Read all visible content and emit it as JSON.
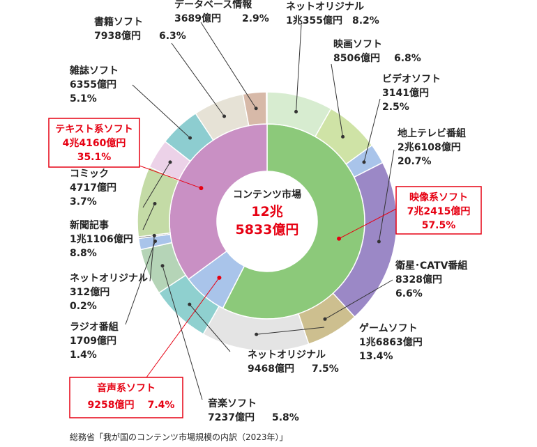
{
  "chart_data": {
    "type": "donut",
    "center_lines": [
      "コンテンツ市場",
      "12兆",
      "5833億円"
    ],
    "inner": {
      "names": [
        "映像系ソフト",
        "音声系ソフト",
        "テキスト系ソフト"
      ],
      "amounts": [
        "7兆2415億円",
        "9258億円",
        "4兆4160億円"
      ],
      "values": [
        57.5,
        7.4,
        35.1
      ],
      "value_labels": [
        "57.5%",
        "7.4%",
        "35.1%"
      ],
      "colors": [
        "#8cc97a",
        "#a9c4ea",
        "#c990c4"
      ]
    },
    "outer": {
      "names": [
        "ネットオリジナル",
        "映画ソフト",
        "ビデオソフト",
        "地上テレビ番組",
        "衛星･CATV番組",
        "ゲームソフト",
        "ネットオリジナル",
        "音楽ソフト",
        "ラジオ番組",
        "ネットオリジナル",
        "新聞記事",
        "コミック",
        "雑誌ソフト",
        "書籍ソフト",
        "データベース情報"
      ],
      "amounts": [
        "1兆355億円",
        "8506億円",
        "3141億円",
        "2兆6108億円",
        "8328億円",
        "1兆6863億円",
        "9468億円",
        "7237億円",
        "1709億円",
        "312億円",
        "1兆1106億円",
        "4717億円",
        "6355億円",
        "7938億円",
        "3689億円"
      ],
      "values": [
        8.2,
        6.8,
        2.5,
        20.7,
        6.6,
        13.4,
        7.5,
        5.8,
        1.4,
        0.2,
        8.8,
        3.7,
        5.1,
        6.3,
        2.9
      ],
      "value_labels": [
        "8.2%",
        "6.8%",
        "2.5%",
        "20.7%",
        "6.6%",
        "13.4%",
        "7.5%",
        "5.8%",
        "1.4%",
        "0.2%",
        "8.8%",
        "3.7%",
        "5.1%",
        "6.3%",
        "2.9%"
      ],
      "colors": [
        "#d7ecd0",
        "#cfe3a6",
        "#a9c4ea",
        "#9b88c6",
        "#cdbf8f",
        "#e4e4e4",
        "#8fd0cf",
        "#b5d4b7",
        "#a9c4ea",
        "#555555",
        "#c4dba6",
        "#ecd2e8",
        "#8dcdd0",
        "#e6e2d6",
        "#d7b9a8"
      ]
    },
    "source": "総務省「我が国のコンテンツ市場規模の内訳（2023年）」"
  }
}
